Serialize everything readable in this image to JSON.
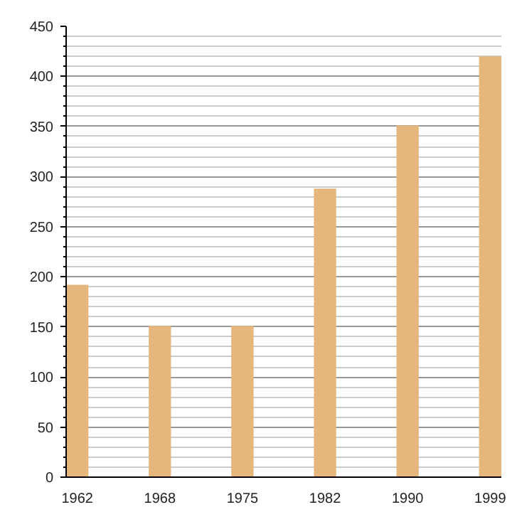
{
  "chart_data": {
    "type": "bar",
    "categories": [
      "1962",
      "1968",
      "1975",
      "1982",
      "1990",
      "1999"
    ],
    "values": [
      192,
      151,
      151,
      288,
      351,
      420
    ],
    "color": "#e5b77d",
    "ylim": [
      0,
      450
    ],
    "yticks": [
      0,
      50,
      100,
      150,
      200,
      250,
      300,
      350,
      400,
      450
    ],
    "grid": "y"
  }
}
